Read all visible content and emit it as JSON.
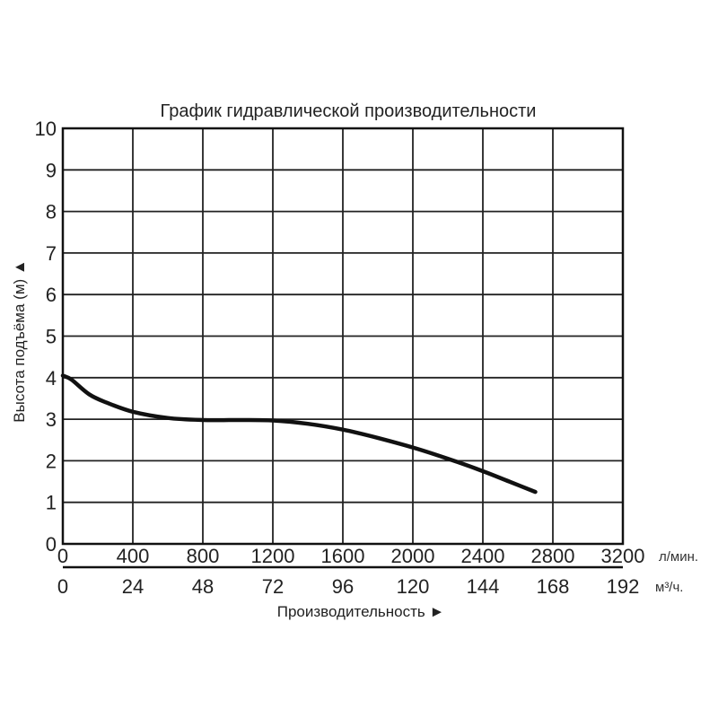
{
  "chart_data": {
    "type": "line",
    "title": "График гидравлической производительности",
    "ylabel": "Высота подъёма (м) ▲",
    "xlabel": "Производительность ►",
    "ylim": [
      0,
      10
    ],
    "yticks": [
      "0",
      "1",
      "2",
      "3",
      "4",
      "5",
      "6",
      "7",
      "8",
      "9",
      "10"
    ],
    "xlim": [
      0,
      3200
    ],
    "xticks_primary": [
      "0",
      "400",
      "800",
      "1200",
      "1600",
      "2000",
      "2400",
      "2800",
      "3200"
    ],
    "xticks_secondary": [
      "0",
      "24",
      "48",
      "72",
      "96",
      "120",
      "144",
      "168",
      "192"
    ],
    "x_unit_primary": "л/мин.",
    "x_unit_secondary": "м³/ч.",
    "grid": true,
    "series": [
      {
        "x": [
          0,
          50,
          150,
          250,
          400,
          600,
          800,
          1000,
          1200,
          1400,
          1600,
          1800,
          2000,
          2200,
          2400,
          2550,
          2700
        ],
        "y": [
          4.05,
          3.95,
          3.6,
          3.4,
          3.18,
          3.03,
          2.98,
          2.98,
          2.97,
          2.89,
          2.75,
          2.55,
          2.32,
          2.05,
          1.75,
          1.5,
          1.25
        ]
      }
    ]
  }
}
